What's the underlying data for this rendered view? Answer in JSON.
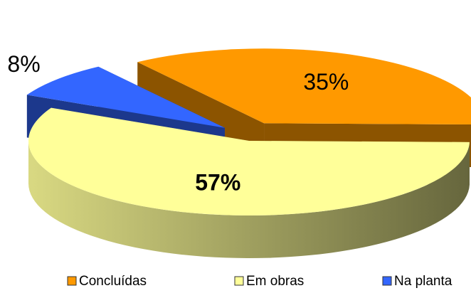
{
  "chart_data": {
    "type": "pie",
    "categories": [
      "Concluídas",
      "Em obras",
      "Na planta"
    ],
    "series": [
      {
        "colors": [
          "#FF9900",
          "#FFFF99",
          "#3366FF"
        ],
        "values": [
          35,
          57,
          8
        ],
        "value_labels": [
          "35%",
          "57%",
          "8%"
        ]
      }
    ],
    "legend": "bottom"
  }
}
